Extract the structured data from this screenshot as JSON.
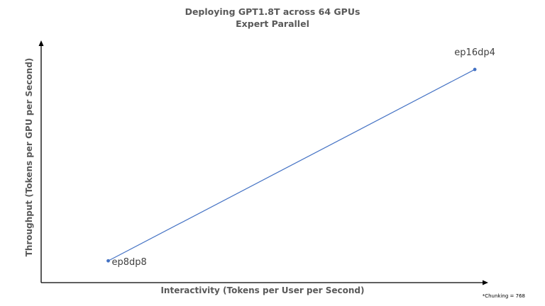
{
  "colors": {
    "series": "#4472c4",
    "axis": "#000000",
    "text": "#595959"
  },
  "chart_data": {
    "type": "line",
    "title": "Deploying GPT1.8T across 64 GPUs",
    "subtitle": "Expert Parallel",
    "xlabel": "Interactivity (Tokens per User per Second)",
    "ylabel": "Throughput (Tokens per GPU per Second)",
    "x_ticks_shown": false,
    "y_ticks_shown": false,
    "grid": false,
    "xlim": [
      0,
      1
    ],
    "ylim": [
      0,
      1
    ],
    "series": [
      {
        "points": [
          {
            "label": "ep8dp8",
            "x": 0.15,
            "y": 0.09
          },
          {
            "label": "ep16dp4",
            "x": 0.97,
            "y": 0.88
          }
        ]
      }
    ],
    "footnote": "*Chunking = 768"
  }
}
